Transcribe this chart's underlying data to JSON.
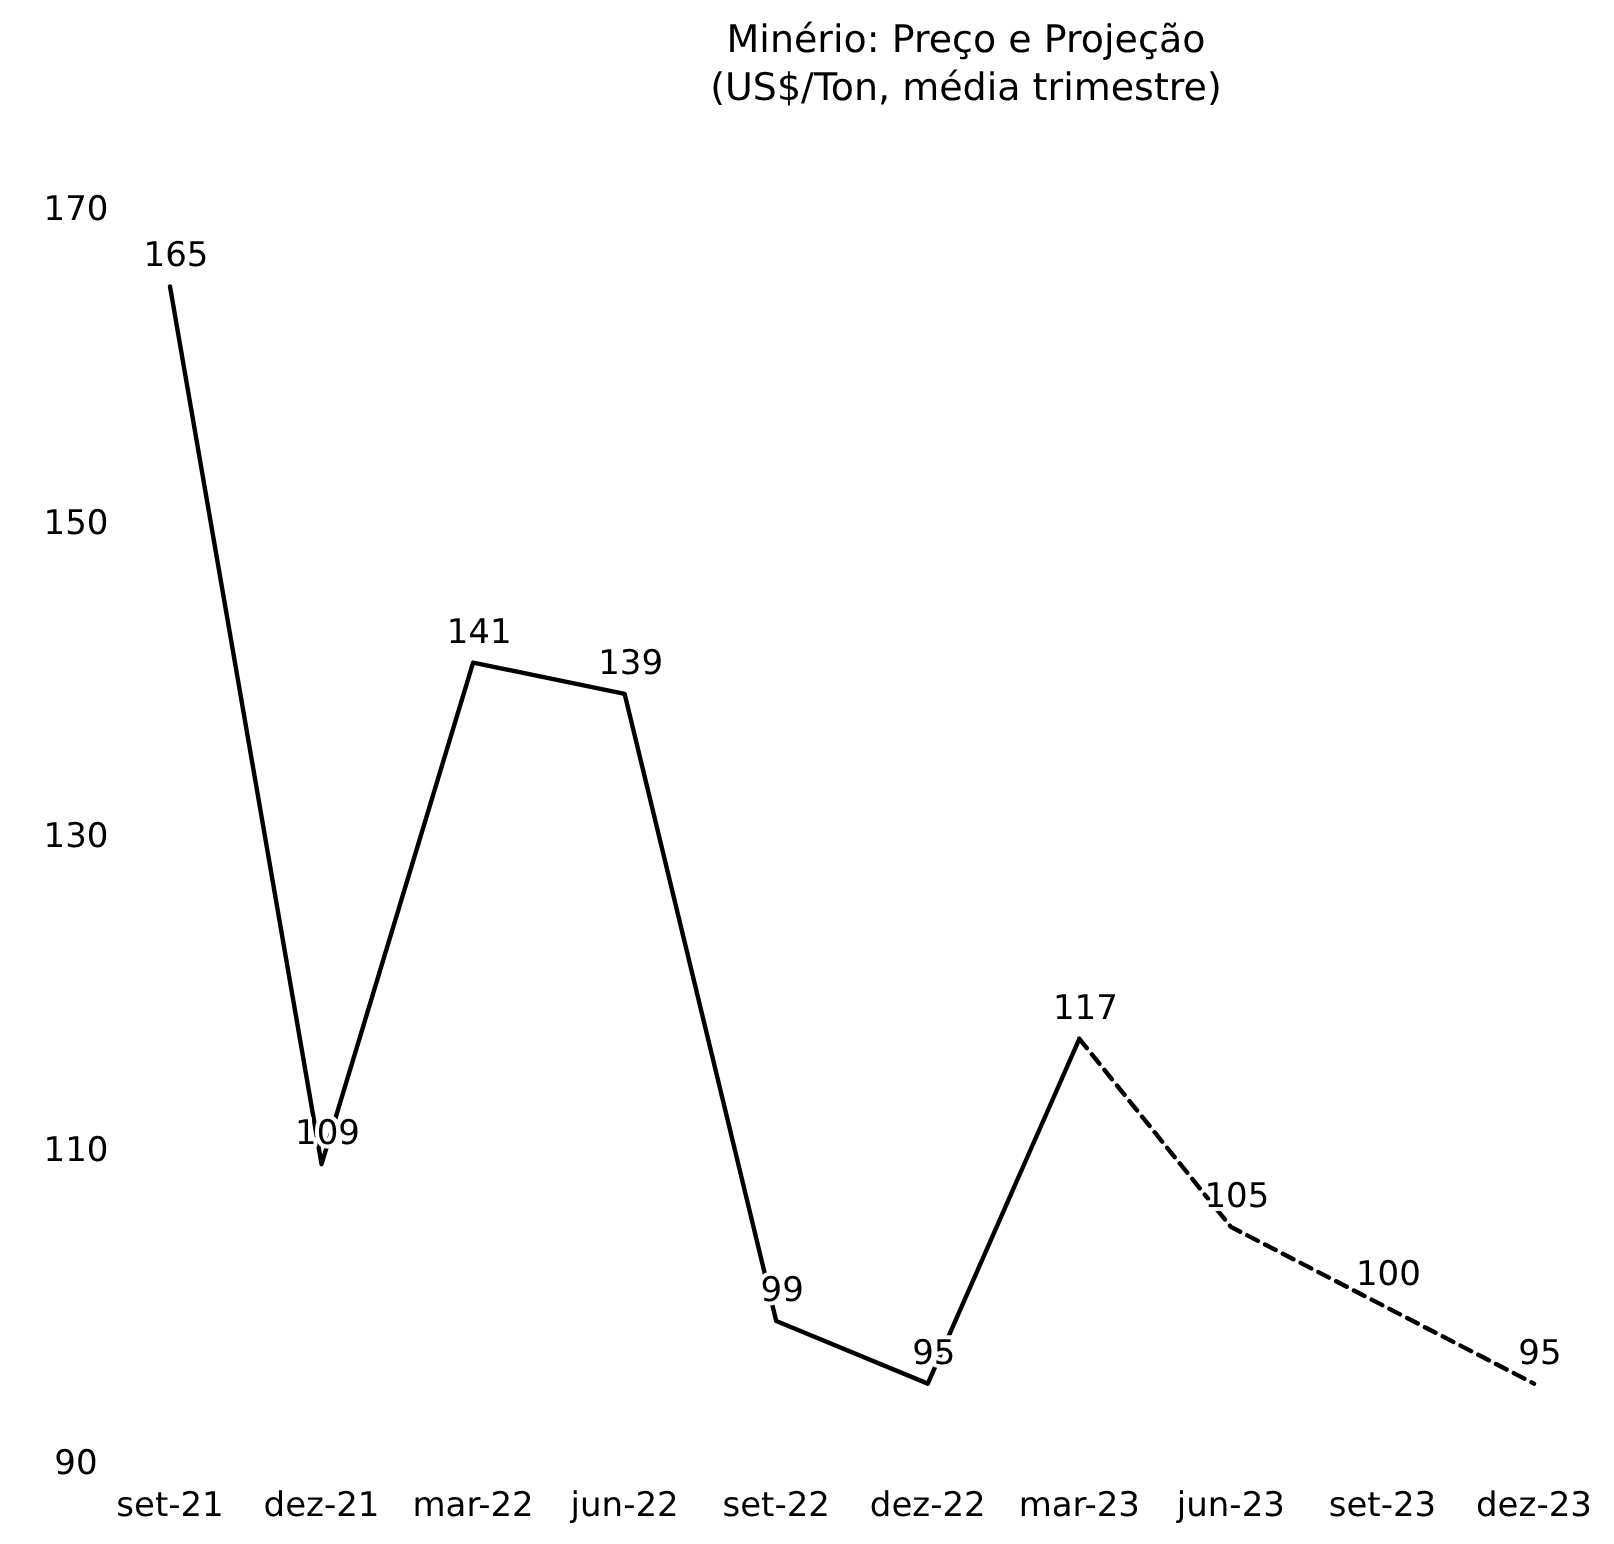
{
  "chart_data": {
    "type": "line",
    "title": "Minério: Preço e Projeção\n(US$/Ton, média trimestre)",
    "categories": [
      "set-21",
      "dez-21",
      "mar-22",
      "jun-22",
      "set-22",
      "dez-22",
      "mar-23",
      "jun-23",
      "set-23",
      "dez-23"
    ],
    "series": [
      {
        "color": "#000000",
        "line_style": "solid",
        "values": [
          165,
          109,
          141,
          139,
          99,
          95,
          117,
          null,
          null,
          null
        ],
        "value_labels": [
          "165",
          "109",
          "141",
          "139",
          "99",
          "95",
          "117",
          null,
          null,
          null
        ]
      },
      {
        "color": "#000000",
        "line_style": "dashed",
        "values": [
          null,
          null,
          null,
          null,
          null,
          null,
          117,
          105,
          100,
          95
        ],
        "value_labels": [
          null,
          null,
          null,
          null,
          null,
          null,
          null,
          "105",
          "100",
          "95"
        ]
      }
    ],
    "ylim": [
      90,
      170
    ],
    "yticks": [
      90,
      110,
      130,
      150,
      170
    ],
    "grid": false,
    "marker": "none"
  }
}
